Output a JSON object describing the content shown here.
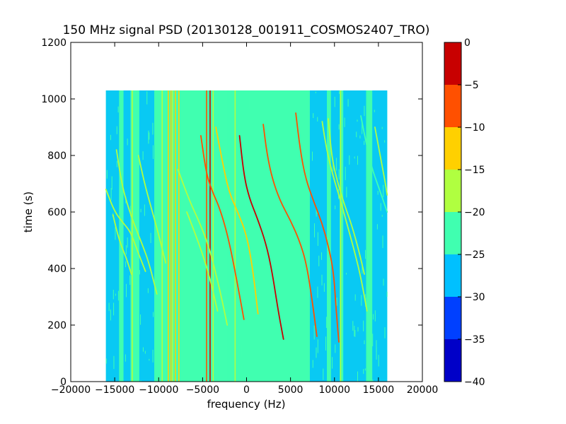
{
  "chart_data": {
    "type": "heatmap",
    "title": "150 MHz signal PSD (20130128_001911_COSMOS2407_TRO)",
    "xlabel": "frequency (Hz)",
    "ylabel": "time (s)",
    "xlim": [
      -20000,
      20000
    ],
    "ylim": [
      0,
      1200
    ],
    "x_ticks": [
      {
        "value": -20000,
        "label": "−20000"
      },
      {
        "value": -15000,
        "label": "−15000"
      },
      {
        "value": -10000,
        "label": "−10000"
      },
      {
        "value": -5000,
        "label": "−5000"
      },
      {
        "value": 0,
        "label": "0"
      },
      {
        "value": 5000,
        "label": "5000"
      },
      {
        "value": 10000,
        "label": "10000"
      },
      {
        "value": 15000,
        "label": "15000"
      },
      {
        "value": 20000,
        "label": "20000"
      }
    ],
    "y_ticks": [
      {
        "value": 0,
        "label": "0"
      },
      {
        "value": 200,
        "label": "200"
      },
      {
        "value": 400,
        "label": "400"
      },
      {
        "value": 600,
        "label": "600"
      },
      {
        "value": 800,
        "label": "800"
      },
      {
        "value": 1000,
        "label": "1000"
      },
      {
        "value": 1200,
        "label": "1200"
      }
    ],
    "data_extent": {
      "x": [
        -16000,
        16000
      ],
      "y": [
        0,
        1030
      ]
    },
    "background_level": -22,
    "colorbar": {
      "range": [
        -40,
        0
      ],
      "bins": [
        {
          "from": -40,
          "to": -35,
          "color": "#0000c8"
        },
        {
          "from": -35,
          "to": -30,
          "color": "#0040ff"
        },
        {
          "from": -30,
          "to": -25,
          "color": "#00c0ff"
        },
        {
          "from": -25,
          "to": -20,
          "color": "#40ffb0"
        },
        {
          "from": -20,
          "to": -15,
          "color": "#b0ff40"
        },
        {
          "from": -15,
          "to": -10,
          "color": "#ffd000"
        },
        {
          "from": -10,
          "to": -5,
          "color": "#ff5000"
        },
        {
          "from": -5,
          "to": 0,
          "color": "#c80000"
        }
      ],
      "ticks": [
        {
          "value": 0,
          "label": "0"
        },
        {
          "value": -5,
          "label": "−5"
        },
        {
          "value": -10,
          "label": "−10"
        },
        {
          "value": -15,
          "label": "−15"
        },
        {
          "value": -20,
          "label": "−20"
        },
        {
          "value": -25,
          "label": "−25"
        },
        {
          "value": -30,
          "label": "−30"
        },
        {
          "value": -35,
          "label": "−35"
        },
        {
          "value": -40,
          "label": "−40"
        }
      ]
    },
    "noise_bands": [
      {
        "x": [
          -16000,
          -14500
        ],
        "level": -27
      },
      {
        "x": [
          -14000,
          -13200
        ],
        "level": -27
      },
      {
        "x": [
          -12200,
          -10500
        ],
        "level": -27
      },
      {
        "x": [
          -2200,
          400
        ],
        "level": -21
      },
      {
        "x": [
          7200,
          9200
        ],
        "level": -27
      },
      {
        "x": [
          9600,
          10600
        ],
        "level": -28
      },
      {
        "x": [
          11000,
          13600
        ],
        "level": -28
      },
      {
        "x": [
          14300,
          16000
        ],
        "level": -28
      }
    ],
    "vertical_lines": [
      {
        "x": -13000,
        "level": -18
      },
      {
        "x": -9600,
        "level": -18
      },
      {
        "x": -8900,
        "level": -12
      },
      {
        "x": -8600,
        "level": -14
      },
      {
        "x": -8400,
        "level": -16
      },
      {
        "x": -8100,
        "level": -14
      },
      {
        "x": -7700,
        "level": -15
      },
      {
        "x": -4550,
        "level": -8
      },
      {
        "x": -4150,
        "level": -3
      },
      {
        "x": -3800,
        "level": -18
      },
      {
        "x": -1300,
        "level": -18
      },
      {
        "x": 1600,
        "level": -22
      },
      {
        "x": 9200,
        "level": -21
      },
      {
        "x": 10700,
        "level": -20
      }
    ],
    "series": [
      {
        "level": -17,
        "points": [
          [
            -16000,
            680
          ],
          [
            -15000,
            600
          ],
          [
            -14000,
            560
          ],
          [
            -13200,
            530
          ],
          [
            -12500,
            470
          ],
          [
            -11500,
            390
          ]
        ]
      },
      {
        "level": -17,
        "points": [
          [
            -15200,
            590
          ],
          [
            -14500,
            500
          ],
          [
            -13700,
            440
          ],
          [
            -13100,
            380
          ]
        ]
      },
      {
        "level": -18,
        "points": [
          [
            -14800,
            820
          ],
          [
            -14200,
            700
          ],
          [
            -13500,
            620
          ],
          [
            -12700,
            550
          ],
          [
            -11800,
            480
          ],
          [
            -11100,
            420
          ],
          [
            -10200,
            310
          ]
        ]
      },
      {
        "level": -18,
        "points": [
          [
            -12300,
            800
          ],
          [
            -11600,
            700
          ],
          [
            -10800,
            610
          ],
          [
            -10000,
            520
          ],
          [
            -9200,
            420
          ]
        ]
      },
      {
        "level": -17,
        "points": [
          [
            -7800,
            750
          ],
          [
            -6500,
            640
          ],
          [
            -5300,
            560
          ],
          [
            -4200,
            470
          ],
          [
            -3000,
            320
          ],
          [
            -2200,
            200
          ]
        ]
      },
      {
        "level": -18,
        "points": [
          [
            -6800,
            600
          ],
          [
            -5800,
            520
          ],
          [
            -5000,
            450
          ],
          [
            -4200,
            370
          ],
          [
            -3300,
            250
          ]
        ]
      },
      {
        "level": -8,
        "points": [
          [
            -5200,
            870
          ],
          [
            -4600,
            740
          ],
          [
            -4000,
            680
          ],
          [
            -3000,
            610
          ],
          [
            -2000,
            500
          ],
          [
            -1000,
            340
          ],
          [
            -300,
            220
          ]
        ]
      },
      {
        "level": -15,
        "points": [
          [
            -3500,
            900
          ],
          [
            -2700,
            770
          ],
          [
            -2000,
            670
          ],
          [
            -1000,
            600
          ],
          [
            0,
            520
          ],
          [
            700,
            400
          ],
          [
            1300,
            240
          ]
        ]
      },
      {
        "level": -4,
        "points": [
          [
            -800,
            870
          ],
          [
            -300,
            730
          ],
          [
            300,
            650
          ],
          [
            1200,
            580
          ],
          [
            2200,
            490
          ],
          [
            2900,
            390
          ],
          [
            3600,
            250
          ],
          [
            4200,
            150
          ]
        ]
      },
      {
        "level": -7,
        "points": [
          [
            1900,
            910
          ],
          [
            2300,
            810
          ],
          [
            2900,
            720
          ],
          [
            3800,
            640
          ],
          [
            5000,
            570
          ],
          [
            6000,
            500
          ],
          [
            6800,
            420
          ],
          [
            7500,
            280
          ],
          [
            8000,
            160
          ]
        ]
      },
      {
        "level": -9,
        "points": [
          [
            5600,
            950
          ],
          [
            6100,
            820
          ],
          [
            6700,
            720
          ],
          [
            7600,
            640
          ],
          [
            8600,
            560
          ],
          [
            9300,
            480
          ],
          [
            9900,
            390
          ],
          [
            10200,
            250
          ],
          [
            10500,
            140
          ]
        ]
      },
      {
        "level": -18,
        "points": [
          [
            8600,
            920
          ],
          [
            9100,
            820
          ],
          [
            9900,
            720
          ],
          [
            10700,
            640
          ],
          [
            11400,
            560
          ],
          [
            12200,
            470
          ],
          [
            13000,
            370
          ],
          [
            13700,
            250
          ]
        ]
      },
      {
        "level": -19,
        "points": [
          [
            9300,
            930
          ],
          [
            9700,
            790
          ],
          [
            10400,
            700
          ],
          [
            11200,
            620
          ],
          [
            12000,
            550
          ],
          [
            12800,
            460
          ],
          [
            13400,
            380
          ]
        ]
      },
      {
        "level": -20,
        "points": [
          [
            14600,
            900
          ],
          [
            15200,
            800
          ],
          [
            15800,
            700
          ],
          [
            16000,
            660
          ]
        ]
      },
      {
        "level": -22,
        "points": [
          [
            13000,
            940
          ],
          [
            13500,
            860
          ],
          [
            14200,
            760
          ],
          [
            15000,
            690
          ],
          [
            16000,
            600
          ]
        ]
      }
    ]
  }
}
